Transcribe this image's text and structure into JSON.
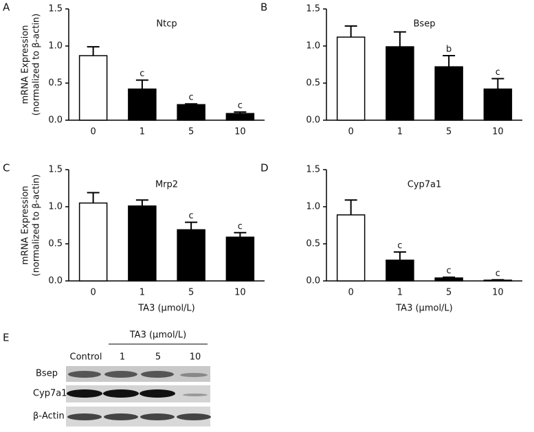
{
  "chart_data": [
    {
      "type": "bar",
      "panel": "A",
      "title": "Ntcp",
      "categories": [
        "0",
        "1",
        "5",
        "10"
      ],
      "values": [
        0.87,
        0.42,
        0.21,
        0.09
      ],
      "errors": [
        0.12,
        0.12,
        0.01,
        0.02
      ],
      "value_annotations": [
        null,
        "c",
        "c",
        "c"
      ],
      "colors": [
        "#ffffff",
        "#000000",
        "#000000",
        "#000000"
      ],
      "ylim": [
        0,
        1.5
      ],
      "yticks": [
        {
          "value": 0,
          "label": "0.0"
        },
        0.5,
        {
          "value": 1,
          "label": "1.0"
        },
        1.5
      ],
      "y_label": [
        "mRNA Expression",
        "(normalized to β-actin)"
      ]
    },
    {
      "type": "bar",
      "panel": "B",
      "title": "Bsep",
      "categories": [
        "0",
        "1",
        "5",
        "10"
      ],
      "values": [
        1.12,
        0.99,
        0.72,
        0.42
      ],
      "errors": [
        0.15,
        0.2,
        0.15,
        0.14
      ],
      "value_annotations": [
        null,
        null,
        "b",
        "c"
      ],
      "colors": [
        "#ffffff",
        "#000000",
        "#000000",
        "#000000"
      ],
      "ylim": [
        0,
        1.5
      ],
      "yticks": [
        {
          "value": 0,
          "label": "0.0"
        },
        0.5,
        {
          "value": 1,
          "label": "1.0"
        },
        1.5
      ]
    },
    {
      "type": "bar",
      "panel": "C",
      "title": "Mrp2",
      "categories": [
        "0",
        "1",
        "5",
        "10"
      ],
      "values": [
        1.05,
        1.01,
        0.69,
        0.59
      ],
      "errors": [
        0.14,
        0.08,
        0.1,
        0.06
      ],
      "value_annotations": [
        null,
        null,
        "c",
        "c"
      ],
      "colors": [
        "#ffffff",
        "#000000",
        "#000000",
        "#000000"
      ],
      "ylim": [
        0,
        1.5
      ],
      "yticks": [
        {
          "value": 0,
          "label": "0.0"
        },
        0.5,
        {
          "value": 1,
          "label": "1.0"
        },
        1.5
      ],
      "y_label": [
        "mRNA Expression",
        "(normalized to β-actin)"
      ],
      "x_label": "TA3 (μmol/L)"
    },
    {
      "type": "bar",
      "panel": "D",
      "title": "Cyp7a1",
      "categories": [
        "0",
        "1",
        "5",
        "10"
      ],
      "values": [
        0.89,
        0.28,
        0.04,
        0.01
      ],
      "errors": [
        0.2,
        0.11,
        0.01,
        0.005
      ],
      "value_annotations": [
        null,
        "c",
        "c",
        "c"
      ],
      "colors": [
        "#ffffff",
        "#000000",
        "#000000",
        "#000000"
      ],
      "ylim": [
        0,
        1.5
      ],
      "yticks": [
        {
          "value": 0,
          "label": "0.0"
        },
        0.5,
        {
          "value": 1,
          "label": "1.0"
        },
        1.5
      ],
      "x_label": "TA3 (μmol/L)"
    }
  ],
  "blot": {
    "panel": "E",
    "header": "TA3 (μmol/L)",
    "columns": [
      "Control",
      "1",
      "5",
      "10"
    ],
    "rows": [
      "Bsep",
      "Cyp7a1",
      "β-Actin"
    ]
  }
}
